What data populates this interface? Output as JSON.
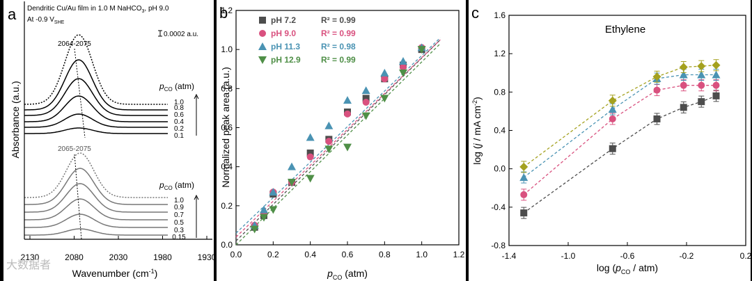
{
  "watermark": "大数据者",
  "panel_a": {
    "label": "a",
    "title_line1": "Dendritic Cu/Au film in 1.0 M NaHCO",
    "title_sub3": "3",
    "title_tail": ", pH 9.0",
    "title_line2": "At -0.9 V",
    "title_she": "SHE",
    "scale_bar": "0.0002 a.u.",
    "top_peak_label": "2064-2075",
    "bottom_peak_label": "2065-2075",
    "pco_p": "p",
    "pco_sub": "CO",
    "pco_unit": " (atm)",
    "ylabel": "Absorbance (a.u.)",
    "xlabel": "Wavenumber (cm",
    "xlabel_sup": "-1",
    "xlabel_tail": ")",
    "xticks": [
      "2130",
      "2080",
      "2030",
      "1980",
      "1930"
    ]
  },
  "chart_data": [
    {
      "type": "line",
      "panel": "a",
      "xlabel": "Wavenumber (cm-1)",
      "ylabel": "Absorbance (a.u.)",
      "xlim": [
        2130,
        1930
      ],
      "groups": [
        {
          "peak_range": "2064-2075",
          "pressures": [
            "1.0",
            "0.8",
            "0.6",
            "0.4",
            "0.2",
            "0.1"
          ]
        },
        {
          "peak_range": "2065-2075",
          "pressures": [
            "1.0",
            "0.9",
            "0.7",
            "0.5",
            "0.3",
            "0.15"
          ]
        }
      ]
    },
    {
      "type": "scatter",
      "panel": "b",
      "xlabel": "pCO (atm)",
      "ylabel": "Normalized peak area (a.u.)",
      "xlim": [
        0,
        1.2
      ],
      "ylim": [
        0,
        1.2
      ],
      "xticks": [
        "0.0",
        "0.2",
        "0.4",
        "0.6",
        "0.8",
        "1.0",
        "1.2"
      ],
      "yticks": [
        "0.0",
        "0.2",
        "0.4",
        "0.6",
        "0.8",
        "1.0",
        "1.2"
      ],
      "series": [
        {
          "name": "pH 7.2",
          "r2": "R² = 0.99",
          "color": "#4d4d4d",
          "marker": "square",
          "x": [
            0.1,
            0.15,
            0.2,
            0.3,
            0.4,
            0.5,
            0.6,
            0.7,
            0.8,
            0.9,
            1.0
          ],
          "y": [
            0.09,
            0.15,
            0.26,
            0.32,
            0.47,
            0.54,
            0.68,
            0.75,
            0.85,
            0.92,
            1.0
          ],
          "fit": [
            0.02,
            1.05
          ]
        },
        {
          "name": "pH 9.0",
          "r2": "R² = 0.99",
          "color": "#d9517f",
          "marker": "circle",
          "x": [
            0.1,
            0.15,
            0.2,
            0.3,
            0.4,
            0.5,
            0.6,
            0.7,
            0.8,
            0.9,
            1.0
          ],
          "y": [
            0.1,
            0.16,
            0.27,
            0.32,
            0.45,
            0.53,
            0.67,
            0.73,
            0.85,
            0.91,
            1.01
          ],
          "fit": [
            0.04,
            1.05
          ]
        },
        {
          "name": "pH 11.3",
          "r2": "R² = 0.98",
          "color": "#4a93b3",
          "marker": "triangle-up",
          "x": [
            0.1,
            0.15,
            0.2,
            0.3,
            0.4,
            0.5,
            0.6,
            0.7,
            0.8,
            0.9,
            1.0
          ],
          "y": [
            0.1,
            0.18,
            0.27,
            0.4,
            0.55,
            0.61,
            0.74,
            0.79,
            0.88,
            0.94,
            1.01
          ],
          "fit": [
            0.06,
            1.06
          ]
        },
        {
          "name": "pH 12.9",
          "r2": "R² = 0.99",
          "color": "#4f8f47",
          "marker": "triangle-down",
          "x": [
            0.1,
            0.15,
            0.2,
            0.3,
            0.4,
            0.5,
            0.6,
            0.7,
            0.8,
            0.9,
            1.0
          ],
          "y": [
            0.08,
            0.14,
            0.18,
            0.32,
            0.34,
            0.49,
            0.5,
            0.66,
            0.75,
            0.88,
            1.0
          ],
          "fit": [
            0.0,
            1.03
          ]
        }
      ]
    },
    {
      "type": "line",
      "panel": "c",
      "title": "Ethylene",
      "xlabel": "log (pCO / atm)",
      "ylabel": "log (j / mA cm-2)",
      "xlim": [
        -1.4,
        0.2
      ],
      "ylim": [
        -0.8,
        1.6
      ],
      "xticks": [
        "-1.4",
        "-1.0",
        "-0.6",
        "-0.2",
        "0.2"
      ],
      "yticks": [
        "-0.8",
        "-0.4",
        "0.0",
        "0.4",
        "0.8",
        "1.2",
        "1.6"
      ],
      "series": [
        {
          "color": "#4d4d4d",
          "marker": "square",
          "x": [
            -1.3,
            -0.7,
            -0.4,
            -0.22,
            -0.1,
            0.0
          ],
          "y": [
            -0.46,
            0.21,
            0.52,
            0.64,
            0.7,
            0.76
          ]
        },
        {
          "color": "#d9517f",
          "marker": "circle",
          "x": [
            -1.3,
            -0.7,
            -0.4,
            -0.22,
            -0.1,
            0.0
          ],
          "y": [
            -0.27,
            0.52,
            0.82,
            0.87,
            0.87,
            0.87
          ]
        },
        {
          "color": "#4a93b3",
          "marker": "triangle-up",
          "x": [
            -1.3,
            -0.7,
            -0.4,
            -0.22,
            -0.1,
            0.0
          ],
          "y": [
            -0.09,
            0.62,
            0.94,
            0.98,
            0.98,
            0.98
          ]
        },
        {
          "color": "#a4a11f",
          "marker": "diamond",
          "x": [
            -1.3,
            -0.7,
            -0.4,
            -0.22,
            -0.1,
            0.0
          ],
          "y": [
            0.02,
            0.71,
            0.96,
            1.06,
            1.07,
            1.08
          ]
        }
      ]
    }
  ],
  "panel_b": {
    "label": "b",
    "ylabel": "Normalized peak area (a.u.)",
    "xlabel_p": "p",
    "xlabel_sub": "CO",
    "xlabel_tail": " (atm)"
  },
  "panel_c": {
    "label": "c",
    "ylabel_head": "log (",
    "ylabel_j": "j",
    "ylabel_mid": " / mA cm",
    "ylabel_sup": "-2",
    "ylabel_tail": ")",
    "xlabel_head": "log (",
    "xlabel_p": "p",
    "xlabel_sub": "CO",
    "xlabel_tail": " / atm)"
  }
}
